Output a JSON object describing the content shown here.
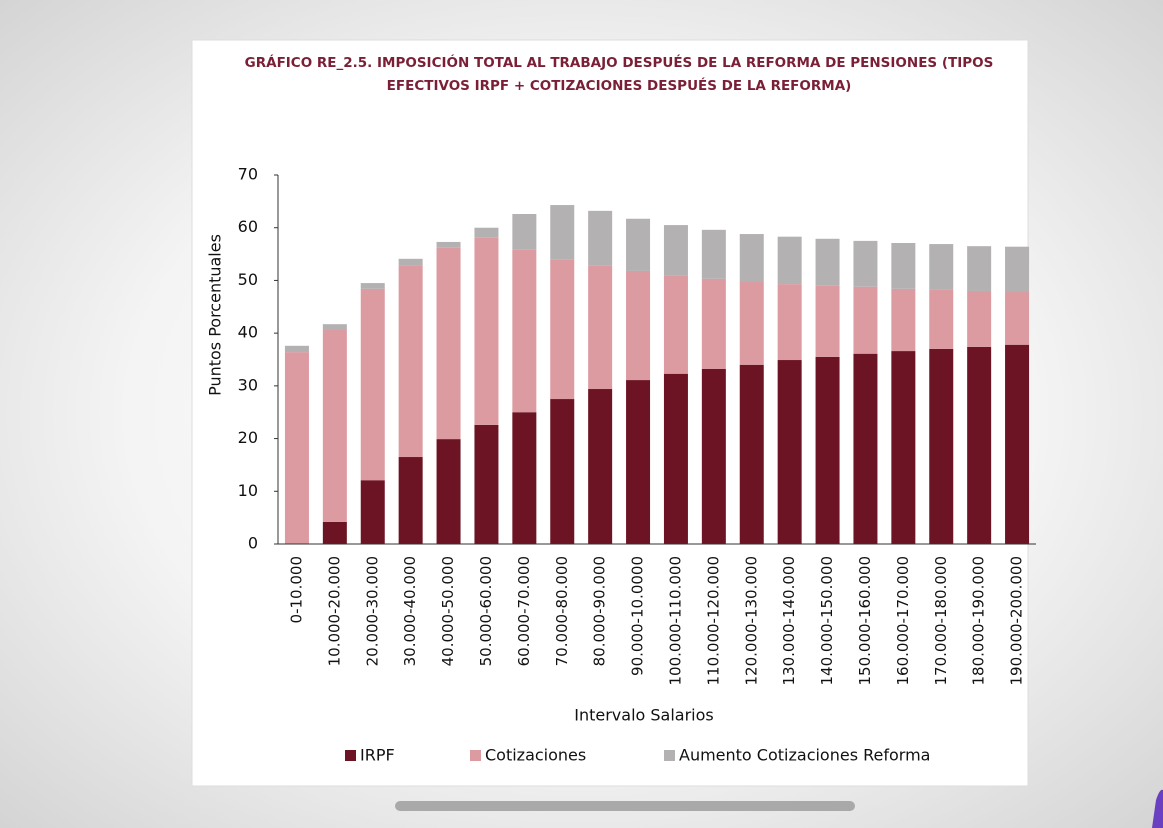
{
  "chart_data": {
    "type": "stacked-bar",
    "title": [
      "GRÁFICO RE_2.5.  IMPOSICIÓN TOTAL AL TRABAJO DESPUÉS DE LA REFORMA DE PENSIONES (TIPOS",
      "EFECTIVOS IRPF + COTIZACIONES DESPUÉS DE LA REFORMA)"
    ],
    "y_label": "Puntos Porcentuales",
    "x_label": "Intervalo Salarios",
    "categories": [
      "0-10.000",
      "10.000-20.000",
      "20.000-30.000",
      "30.000-40.000",
      "40.000-50.000",
      "50.000-60.000",
      "60.000-70.000",
      "70.000-80.000",
      "80.000-90.000",
      "90.000-10.0000",
      "100.000-110.000",
      "110.000-120.000",
      "120.000-130.000",
      "130.000-140.000",
      "140.000-150.000",
      "150.000-160.000",
      "160.000-170.000",
      "170.000-180.000",
      "180.000-190.000",
      "190.000-200.000"
    ],
    "series": [
      {
        "name": "IRPF",
        "color": "#6d1424",
        "values": [
          0,
          4.2,
          12.1,
          16.5,
          19.9,
          22.6,
          25.0,
          27.5,
          29.4,
          31.1,
          32.3,
          33.2,
          34.0,
          34.9,
          35.5,
          36.1,
          36.6,
          37.0,
          37.4,
          37.8
        ]
      },
      {
        "name": "Cotizaciones",
        "color": "#dc9aa1",
        "values": [
          36.4,
          36.4,
          36.3,
          36.4,
          36.3,
          35.5,
          30.8,
          26.4,
          23.4,
          20.7,
          18.7,
          17.1,
          15.7,
          14.4,
          13.5,
          12.7,
          11.8,
          11.2,
          10.6,
          10.0
        ]
      },
      {
        "name": "Aumento Cotizaciones Reforma",
        "color": "#b4b1b2",
        "values": [
          1.2,
          1.1,
          1.1,
          1.2,
          1.1,
          1.9,
          6.8,
          10.4,
          10.4,
          9.9,
          9.5,
          9.3,
          9.1,
          9.0,
          8.9,
          8.7,
          8.7,
          8.7,
          8.5,
          8.6
        ]
      }
    ],
    "ylim": [
      0,
      70
    ],
    "yticks": [
      0,
      10,
      20,
      30,
      40,
      50,
      60,
      70
    ],
    "grid": false,
    "legend": "bottom"
  }
}
